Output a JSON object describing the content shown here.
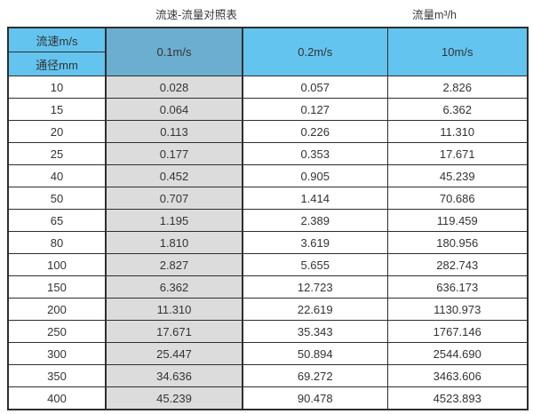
{
  "titles": {
    "main": "流速-流量对照表",
    "right": "流量m³/h"
  },
  "colors": {
    "header_blue": "#63C4EF",
    "header_blue_highlight": "#6CAECF",
    "highlight_column_gray": "#DCDCDC",
    "border": "#2E2E2E",
    "text": "#333333"
  },
  "chart_data": {
    "type": "table",
    "title": "流速-流量对照表",
    "units_label": "流量m³/h",
    "col_header_label": "流速m/s",
    "row_header_label": "通径mm",
    "columns": [
      "0.1m/s",
      "0.2m/s",
      "10m/s"
    ],
    "highlighted_column": "0.1m/s",
    "rows": [
      [
        "10",
        "0.028",
        "0.057",
        "2.826"
      ],
      [
        "15",
        "0.064",
        "0.127",
        "6.362"
      ],
      [
        "20",
        "0.113",
        "0.226",
        "11.310"
      ],
      [
        "25",
        "0.177",
        "0.353",
        "17.671"
      ],
      [
        "40",
        "0.452",
        "0.905",
        "45.239"
      ],
      [
        "50",
        "0.707",
        "1.414",
        "70.686"
      ],
      [
        "65",
        "1.195",
        "2.389",
        "119.459"
      ],
      [
        "80",
        "1.810",
        "3.619",
        "180.956"
      ],
      [
        "100",
        "2.827",
        "5.655",
        "282.743"
      ],
      [
        "150",
        "6.362",
        "12.723",
        "636.173"
      ],
      [
        "200",
        "11.310",
        "22.619",
        "1130.973"
      ],
      [
        "250",
        "17.671",
        "35.343",
        "1767.146"
      ],
      [
        "300",
        "25.447",
        "50.894",
        "2544.690"
      ],
      [
        "350",
        "34.636",
        "69.272",
        "3463.606"
      ],
      [
        "400",
        "45.239",
        "90.478",
        "4523.893"
      ]
    ]
  }
}
